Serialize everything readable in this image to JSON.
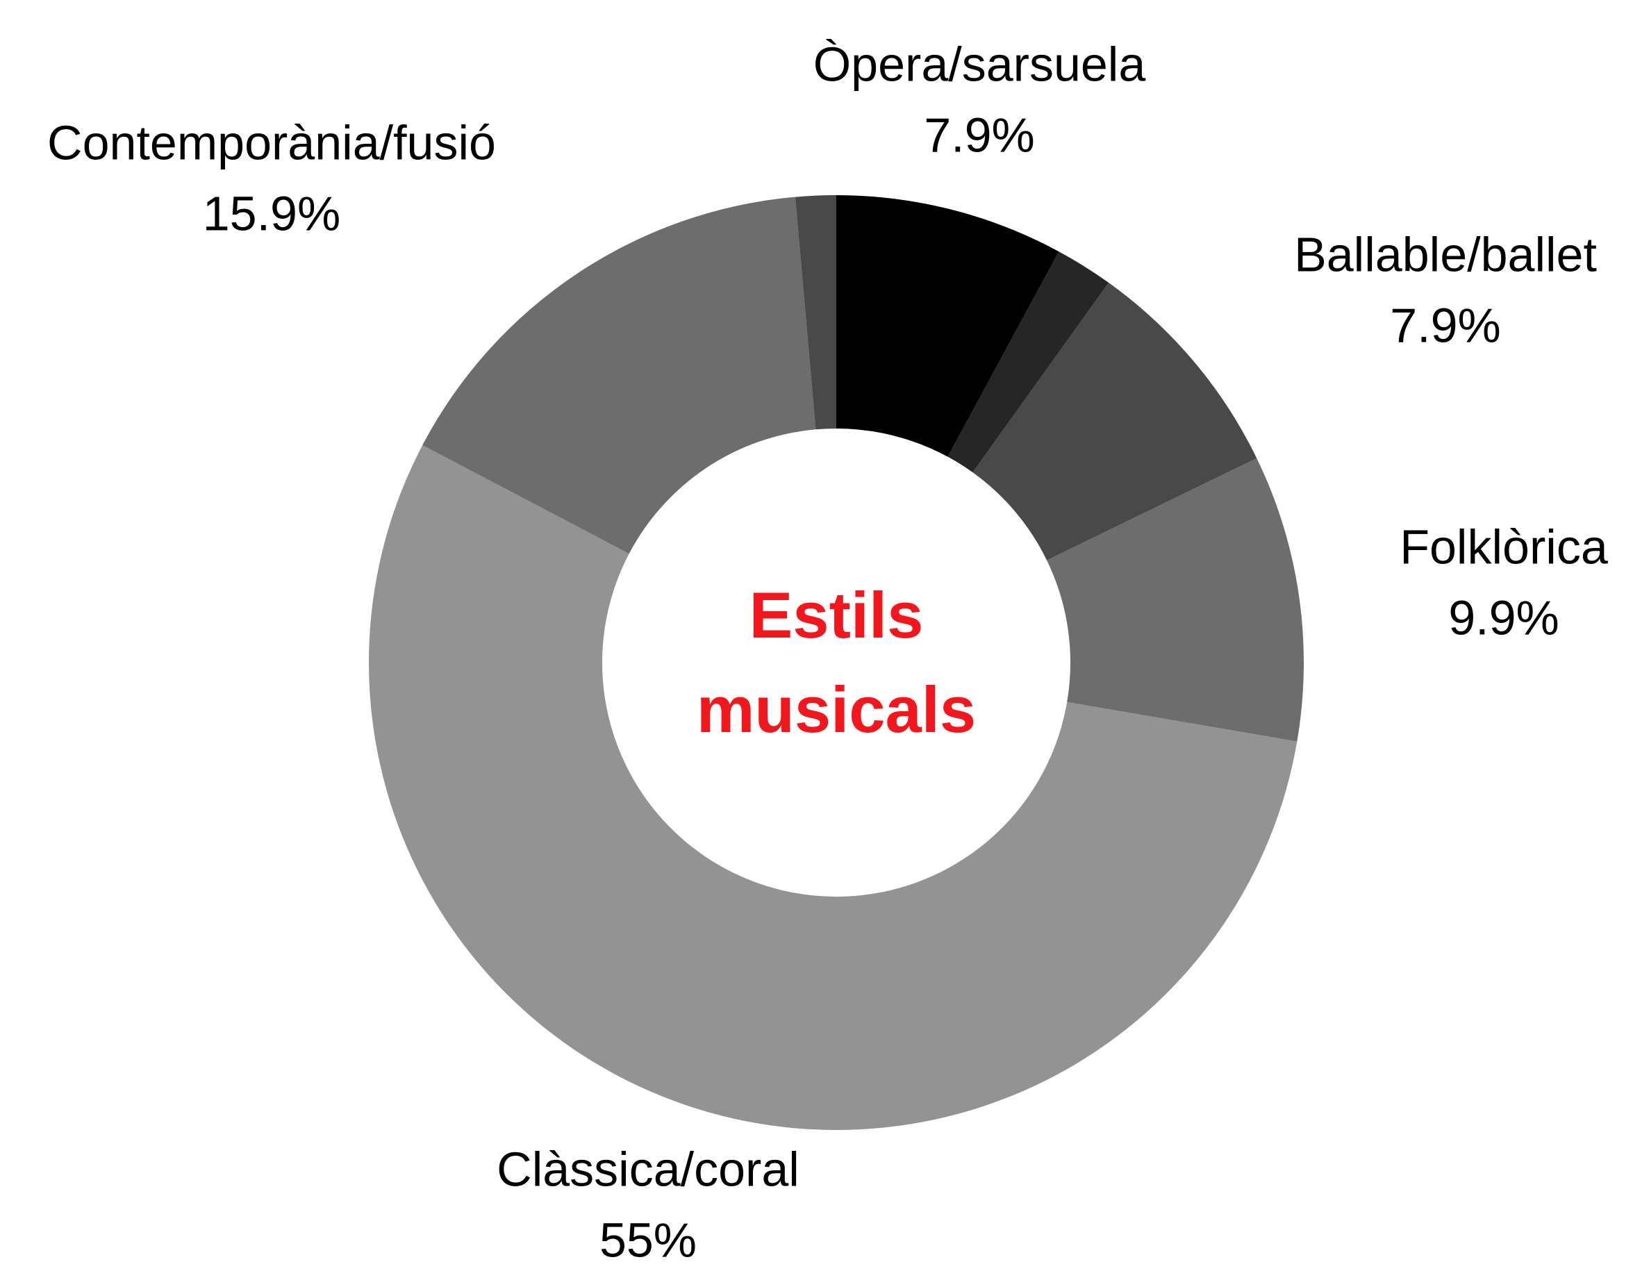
{
  "chart_data": {
    "type": "donut",
    "title": "Estils musicals",
    "categories": [
      "Òpera/sarsuela",
      null,
      "Ballable/ballet",
      "Folklòrica",
      "Clàssica/coral",
      "Contemporània/fusió",
      null
    ],
    "values": [
      7.9,
      2.0,
      7.9,
      9.9,
      55,
      15.9,
      1.4
    ],
    "value_labels": [
      "7.9%",
      null,
      "7.9%",
      "9.9%",
      "55%",
      "15.9%",
      null
    ],
    "colors": [
      "#000000",
      "#262626",
      "#494949",
      "#6d6d6d",
      "#939393",
      "#6d6d6d",
      "#494949"
    ]
  }
}
